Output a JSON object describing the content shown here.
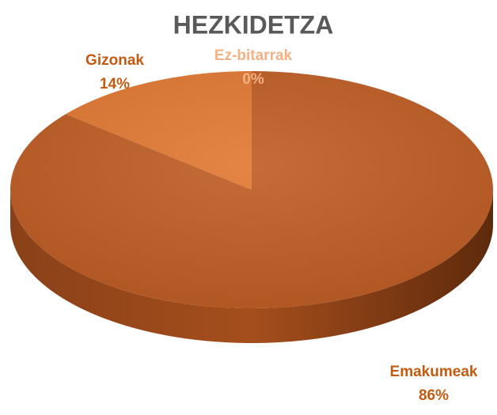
{
  "chart_data": {
    "type": "pie",
    "title": "HEZKIDETZA",
    "categories": [
      "Emakumeak",
      "Gizonak",
      "Ez-bitarrak"
    ],
    "values": [
      86,
      14,
      0
    ],
    "value_labels": [
      "86%",
      "14%",
      "0%"
    ],
    "colors": [
      "#c05f27",
      "#e27a35",
      "#f4b183"
    ],
    "label_colors": [
      "#c55a11",
      "#c55a11",
      "#f4b183"
    ]
  }
}
